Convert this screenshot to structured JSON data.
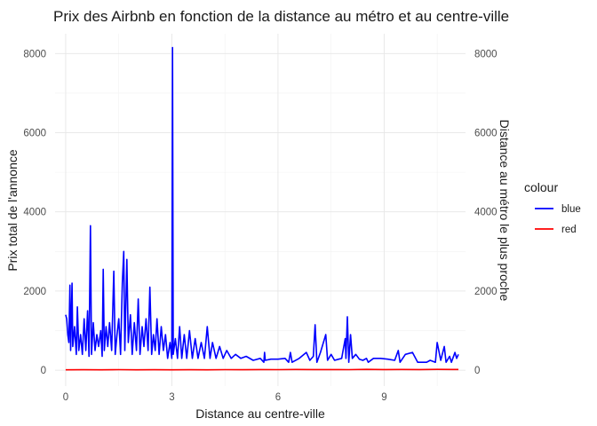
{
  "chart_data": {
    "type": "line",
    "title": "Prix des Airbnb en fonction de la distance au métro et au centre-ville",
    "xlabel": "Distance au centre-ville",
    "ylabel": "Prix total de l'annonce",
    "ylabel_right": "Distance au métro le plus proche",
    "xlim": [
      -0.3,
      11.3
    ],
    "ylim": [
      -400,
      8500
    ],
    "x_ticks": [
      0,
      3,
      6,
      9
    ],
    "x_tick_labels": [
      "0",
      "3",
      "6",
      "9"
    ],
    "y_ticks": [
      0,
      2000,
      4000,
      6000,
      8000
    ],
    "y_tick_labels": [
      "0",
      "2000",
      "4000",
      "6000",
      "8000"
    ],
    "y_right_ticks": [
      0,
      2000,
      4000,
      6000,
      8000
    ],
    "y_right_tick_labels": [
      "0",
      "2000",
      "4000",
      "6000",
      "8000"
    ],
    "grid": true,
    "legend": {
      "title": "colour",
      "position": "right"
    },
    "series": [
      {
        "name": "blue",
        "color": "#0000ff",
        "points": [
          [
            0.0,
            1400
          ],
          [
            0.03,
            1300
          ],
          [
            0.06,
            900
          ],
          [
            0.09,
            700
          ],
          [
            0.12,
            2150
          ],
          [
            0.14,
            500
          ],
          [
            0.18,
            2200
          ],
          [
            0.2,
            600
          ],
          [
            0.25,
            1100
          ],
          [
            0.3,
            400
          ],
          [
            0.33,
            1600
          ],
          [
            0.37,
            500
          ],
          [
            0.42,
            900
          ],
          [
            0.47,
            400
          ],
          [
            0.52,
            1300
          ],
          [
            0.57,
            500
          ],
          [
            0.62,
            1500
          ],
          [
            0.66,
            350
          ],
          [
            0.7,
            3650
          ],
          [
            0.73,
            400
          ],
          [
            0.78,
            1200
          ],
          [
            0.83,
            500
          ],
          [
            0.88,
            900
          ],
          [
            0.93,
            600
          ],
          [
            0.99,
            1000
          ],
          [
            1.03,
            350
          ],
          [
            1.06,
            2550
          ],
          [
            1.09,
            500
          ],
          [
            1.14,
            1100
          ],
          [
            1.19,
            600
          ],
          [
            1.24,
            1200
          ],
          [
            1.3,
            500
          ],
          [
            1.36,
            2500
          ],
          [
            1.4,
            400
          ],
          [
            1.45,
            900
          ],
          [
            1.5,
            1300
          ],
          [
            1.55,
            400
          ],
          [
            1.6,
            2200
          ],
          [
            1.64,
            3000
          ],
          [
            1.67,
            500
          ],
          [
            1.73,
            2800
          ],
          [
            1.77,
            700
          ],
          [
            1.83,
            1400
          ],
          [
            1.88,
            400
          ],
          [
            1.94,
            1200
          ],
          [
            2.0,
            500
          ],
          [
            2.05,
            1800
          ],
          [
            2.1,
            400
          ],
          [
            2.16,
            1100
          ],
          [
            2.21,
            600
          ],
          [
            2.27,
            1300
          ],
          [
            2.33,
            500
          ],
          [
            2.38,
            2100
          ],
          [
            2.43,
            400
          ],
          [
            2.48,
            900
          ],
          [
            2.53,
            500
          ],
          [
            2.58,
            1300
          ],
          [
            2.64,
            400
          ],
          [
            2.7,
            1100
          ],
          [
            2.76,
            500
          ],
          [
            2.82,
            900
          ],
          [
            2.88,
            300
          ],
          [
            2.95,
            700
          ],
          [
            3.0,
            300
          ],
          [
            3.02,
            8150
          ],
          [
            3.04,
            400
          ],
          [
            3.1,
            800
          ],
          [
            3.16,
            300
          ],
          [
            3.22,
            1100
          ],
          [
            3.28,
            300
          ],
          [
            3.35,
            900
          ],
          [
            3.42,
            300
          ],
          [
            3.5,
            1000
          ],
          [
            3.58,
            300
          ],
          [
            3.66,
            800
          ],
          [
            3.74,
            300
          ],
          [
            3.83,
            700
          ],
          [
            3.92,
            300
          ],
          [
            4.0,
            1100
          ],
          [
            4.08,
            300
          ],
          [
            4.15,
            700
          ],
          [
            4.25,
            300
          ],
          [
            4.35,
            600
          ],
          [
            4.45,
            300
          ],
          [
            4.55,
            500
          ],
          [
            4.68,
            300
          ],
          [
            4.8,
            400
          ],
          [
            4.95,
            300
          ],
          [
            5.1,
            350
          ],
          [
            5.3,
            250
          ],
          [
            5.5,
            300
          ],
          [
            5.6,
            200
          ],
          [
            5.62,
            450
          ],
          [
            5.64,
            250
          ],
          [
            5.8,
            280
          ],
          [
            6.0,
            280
          ],
          [
            6.2,
            300
          ],
          [
            6.3,
            200
          ],
          [
            6.35,
            450
          ],
          [
            6.4,
            200
          ],
          [
            6.6,
            300
          ],
          [
            6.8,
            450
          ],
          [
            6.9,
            250
          ],
          [
            7.0,
            350
          ],
          [
            7.05,
            1150
          ],
          [
            7.1,
            200
          ],
          [
            7.2,
            450
          ],
          [
            7.35,
            900
          ],
          [
            7.4,
            250
          ],
          [
            7.5,
            400
          ],
          [
            7.6,
            250
          ],
          [
            7.8,
            300
          ],
          [
            7.9,
            800
          ],
          [
            7.92,
            300
          ],
          [
            7.96,
            1350
          ],
          [
            8.0,
            200
          ],
          [
            8.05,
            900
          ],
          [
            8.1,
            300
          ],
          [
            8.2,
            400
          ],
          [
            8.3,
            280
          ],
          [
            8.4,
            250
          ],
          [
            8.5,
            300
          ],
          [
            8.55,
            200
          ],
          [
            8.7,
            300
          ],
          [
            8.9,
            300
          ],
          [
            9.1,
            280
          ],
          [
            9.3,
            250
          ],
          [
            9.4,
            500
          ],
          [
            9.45,
            200
          ],
          [
            9.6,
            400
          ],
          [
            9.8,
            450
          ],
          [
            9.95,
            200
          ],
          [
            10.2,
            200
          ],
          [
            10.3,
            250
          ],
          [
            10.45,
            200
          ],
          [
            10.5,
            700
          ],
          [
            10.6,
            250
          ],
          [
            10.7,
            600
          ],
          [
            10.75,
            200
          ],
          [
            10.85,
            350
          ],
          [
            10.9,
            200
          ],
          [
            11.0,
            450
          ],
          [
            11.05,
            300
          ],
          [
            11.1,
            400
          ]
        ]
      },
      {
        "name": "red",
        "color": "#ff0000",
        "points": [
          [
            0.0,
            10
          ],
          [
            0.5,
            12
          ],
          [
            1.0,
            10
          ],
          [
            1.5,
            14
          ],
          [
            2.0,
            10
          ],
          [
            2.5,
            12
          ],
          [
            3.0,
            11
          ],
          [
            3.5,
            13
          ],
          [
            4.0,
            10
          ],
          [
            4.5,
            15
          ],
          [
            5.0,
            12
          ],
          [
            5.5,
            18
          ],
          [
            6.0,
            14
          ],
          [
            6.5,
            20
          ],
          [
            7.0,
            16
          ],
          [
            7.5,
            18
          ],
          [
            8.0,
            14
          ],
          [
            8.5,
            22
          ],
          [
            9.0,
            18
          ],
          [
            9.5,
            20
          ],
          [
            10.0,
            17
          ],
          [
            10.5,
            22
          ],
          [
            11.1,
            20
          ]
        ]
      }
    ]
  }
}
